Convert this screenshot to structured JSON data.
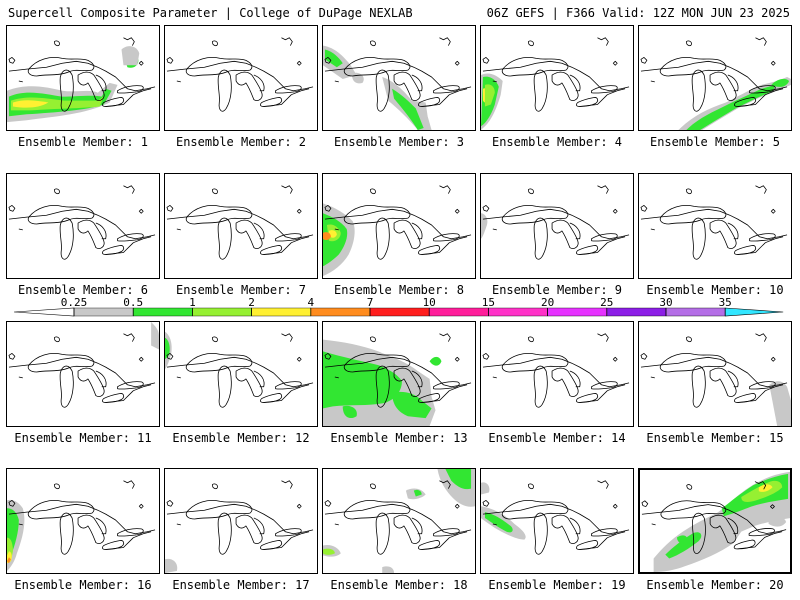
{
  "header": {
    "left": "Supercell Composite Parameter | College of DuPage NEXLAB",
    "right": "06Z GEFS | F366 Valid: 12Z MON JUN 23 2025"
  },
  "legend": {
    "ticks": [
      "0.25",
      "0.5",
      "1",
      "2",
      "4",
      "7",
      "10",
      "15",
      "20",
      "25",
      "30",
      "35"
    ],
    "colors": [
      "#ffffff",
      "#c8c8c8",
      "#32e632",
      "#96f032",
      "#fff032",
      "#ff8c1e",
      "#ff1e1e",
      "#ff1e9b",
      "#ff32c8",
      "#e632ff",
      "#8c1ee6",
      "#b46ee6",
      "#32e6ff"
    ]
  },
  "selected_member": 20,
  "members": [
    {
      "label": "Ensemble Member: 1"
    },
    {
      "label": "Ensemble Member: 2"
    },
    {
      "label": "Ensemble Member: 3"
    },
    {
      "label": "Ensemble Member: 4"
    },
    {
      "label": "Ensemble Member: 5"
    },
    {
      "label": "Ensemble Member: 6"
    },
    {
      "label": "Ensemble Member: 7"
    },
    {
      "label": "Ensemble Member: 8"
    },
    {
      "label": "Ensemble Member: 9"
    },
    {
      "label": "Ensemble Member: 10"
    },
    {
      "label": "Ensemble Member: 11"
    },
    {
      "label": "Ensemble Member: 12"
    },
    {
      "label": "Ensemble Member: 13"
    },
    {
      "label": "Ensemble Member: 14"
    },
    {
      "label": "Ensemble Member: 15"
    },
    {
      "label": "Ensemble Member: 16"
    },
    {
      "label": "Ensemble Member: 17"
    },
    {
      "label": "Ensemble Member: 18"
    },
    {
      "label": "Ensemble Member: 19"
    },
    {
      "label": "Ensemble Member: 20"
    }
  ]
}
